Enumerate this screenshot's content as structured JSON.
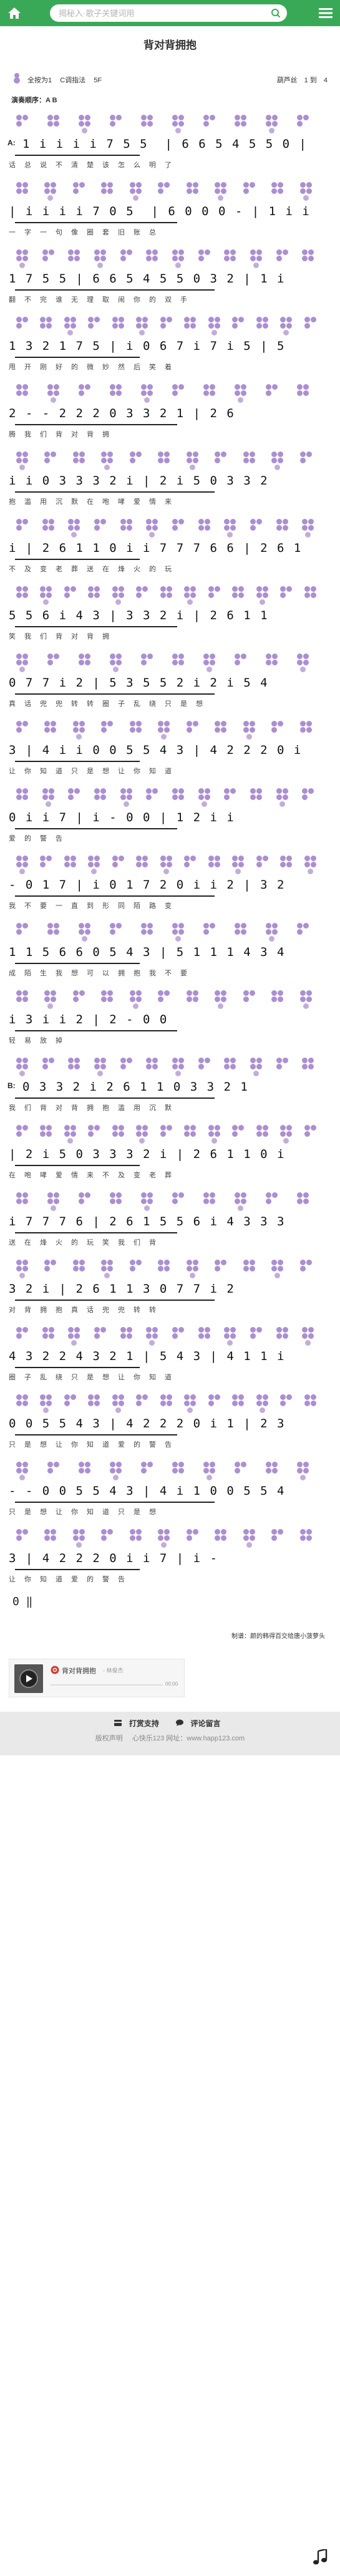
{
  "header": {
    "search_placeholder": "揭秘入·歌子关键词用"
  },
  "song": {
    "title": "背对背拥抱",
    "flute_type": "全按为1",
    "key": "C调指法",
    "tempo": "5F",
    "time_signature": "4",
    "measure_info": "1 到",
    "instrument": "葫芦丝",
    "play_order": "演奏顺序：A B"
  },
  "score": {
    "section_a": "A:",
    "section_b": "B:",
    "end": "0 ‖",
    "rows": [
      {
        "notes": "1 i i i i 7 5 5  | 6 6 5 4 5 5 0 |",
        "lyric": "话总说不清楚该怎么明了"
      },
      {
        "notes": "| i i i i 7 0 5  | 6 0 0 0 - | 1 i i",
        "lyric": "一字一句像圈套旧账总"
      },
      {
        "notes": "1 7 5 5 | 6 6 5 4 5 5 0 3 2 | 1 i",
        "lyric": "翻不完谁无理取闹你的双手"
      },
      {
        "notes": "1 3 2 1 7 5 | i 0 6 7 i 7 i 5 | 5",
        "lyric": "甩开刚好的微妙然后笑着"
      },
      {
        "notes": "2 - - 2 2 2 0 3 3 2 1 | 2 6",
        "lyric": "腾我们背对背拥"
      },
      {
        "notes": "i i 0 3 3 3 2 i | 2 i 5 0 3 3 2",
        "lyric": "抱滥用沉默在咆哮爱情来"
      },
      {
        "notes": "i | 2 6 1 1 0 i i 7 7 7 6 6 | 2 6 1",
        "lyric": "不及变老葬送在烽火的玩"
      },
      {
        "notes": "5 5 6 i 4 3 | 3 3 2 i | 2 6 1 1",
        "lyric": "笑我们背对背拥"
      },
      {
        "notes": "0 7 7 i 2 | 5 3 5 5 2 i 2 i 5 4",
        "lyric": "真话兜兜转转圈子乱绕只是想"
      },
      {
        "notes": "3 | 4 i i 0 0 5 5 4 3 | 4 2 2 2 0 i",
        "lyric": "让你知道只是想让你知道"
      },
      {
        "notes": "0 i i 7 | i - 0 0 | 1 2 i i",
        "lyric": "爱的警告"
      },
      {
        "notes": "- 0 1 7 | i 0 1 7 2 0 i i 2 | 3 2",
        "lyric": "我不要一直到形同陌路变"
      },
      {
        "notes": "1 1 5 6 6 0 5 4 3 | 5 1 1 1 4 3 4",
        "lyric": "成陌生我想可以拥抱我不要"
      },
      {
        "notes": "i 3 i i 2 | 2 - 0 0",
        "lyric": "轻易放掉"
      },
      {
        "notes": "0 3 3 2 i 2 6 1 1 0 3 3 2 1",
        "lyric": "我们背对背拥抱滥用沉默"
      },
      {
        "notes": "| 2 i 5 0 3 3 3 2 i | 2 6 1 1 0 i",
        "lyric": "在咆哮爱情来不及变老葬"
      },
      {
        "notes": "i 7 7 7 6 | 2 6 1 5 5 6 i 4 3 3 3",
        "lyric": "送在烽火的玩笑我们背"
      },
      {
        "notes": "3 2 i | 2 6 1 1 3 0 7 7 i 2",
        "lyric": "对背拥抱真话兜兜转转"
      },
      {
        "notes": "4 3 2 2 4 3 2 1 | 5 4 3 | 4 1 1 i",
        "lyric": "圈子乱绕只是想让你知道"
      },
      {
        "notes": "0 0 5 5 4 3 | 4 2 2 2 0 i 1 | 2 3",
        "lyric": "只是想让你知道爱的警告"
      },
      {
        "notes": "- - 0 0 5 5 4 3 | 4 i 1 0 0 5 5 4",
        "lyric": "只是想让你知道只是想"
      },
      {
        "notes": "3 | 4 2 2 2 0 i i 7 | i -",
        "lyric": "让你知道爱的警告"
      }
    ]
  },
  "credit": "制谱：颜的韩得百交给唐小菠萝头",
  "player": {
    "song_name": "背对背拥抱",
    "artist": "- 林俊杰",
    "time": "00:00"
  },
  "footer": {
    "tip_label": "打赏支持",
    "comment_label": "评论留言",
    "copyright": "版权声明",
    "site": "心快乐123 网址：www.happ123.com"
  }
}
